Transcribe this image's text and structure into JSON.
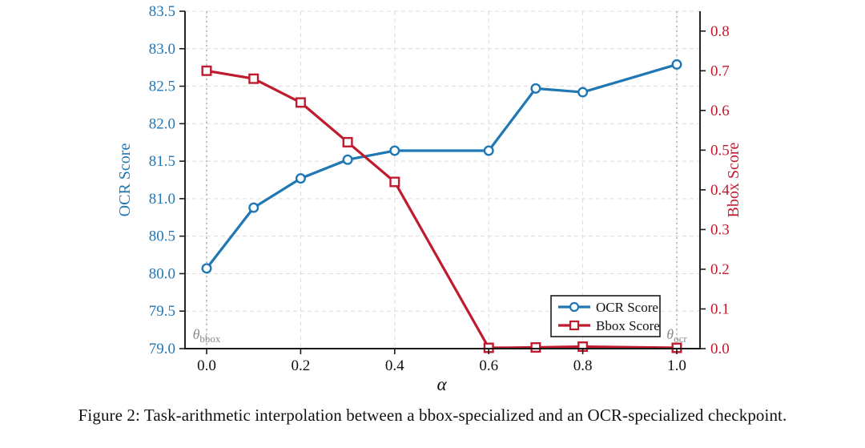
{
  "figure": {
    "caption": "Figure 2: Task-arithmetic interpolation between a bbox-specialized and an OCR-specialized checkpoint."
  },
  "chart_data": {
    "type": "line",
    "x": [
      0.0,
      0.1,
      0.2,
      0.3,
      0.4,
      0.6,
      0.7,
      0.8,
      1.0
    ],
    "series": [
      {
        "name": "OCR Score",
        "axis": "left",
        "color": "#1f77b4",
        "marker": "circle",
        "values": [
          80.07,
          80.88,
          81.27,
          81.52,
          81.64,
          81.64,
          82.47,
          82.42,
          82.79
        ]
      },
      {
        "name": "Bbox Score",
        "axis": "right",
        "color": "#bf1a2e",
        "marker": "square",
        "values": [
          0.7,
          0.68,
          0.62,
          0.52,
          0.42,
          0.002,
          0.003,
          0.005,
          0.002
        ]
      }
    ],
    "xlabel": "α",
    "x_ticks": [
      "0.0",
      "0.2",
      "0.4",
      "0.6",
      "0.8",
      "1.0"
    ],
    "left_axis": {
      "label": "OCR Score",
      "min": 79.0,
      "max": 83.5,
      "ticks": [
        "79.0",
        "79.5",
        "80.0",
        "80.5",
        "81.0",
        "81.5",
        "82.0",
        "82.5",
        "83.0",
        "83.5"
      ],
      "color": "#1f77b4"
    },
    "right_axis": {
      "label": "Bbox Score",
      "min": 0.0,
      "max": 0.85,
      "ticks": [
        "0.0",
        "0.1",
        "0.2",
        "0.3",
        "0.4",
        "0.5",
        "0.6",
        "0.7",
        "0.8"
      ],
      "color": "#bf1a2e"
    },
    "reference_lines": [
      {
        "x": 0.0,
        "symbol": "θ",
        "sub": "bbox"
      },
      {
        "x": 1.0,
        "symbol": "θ",
        "sub": "ocr"
      }
    ],
    "legend": {
      "position": "lower right",
      "entries": [
        "OCR Score",
        "Bbox Score"
      ]
    },
    "grid": true,
    "colors": {
      "spine": "#1a1a1a",
      "grid": "#dcdcdc",
      "ref_line": "#a8a8a8",
      "annotation": "#8c8c8c",
      "tick_text_x": "#111111"
    }
  }
}
